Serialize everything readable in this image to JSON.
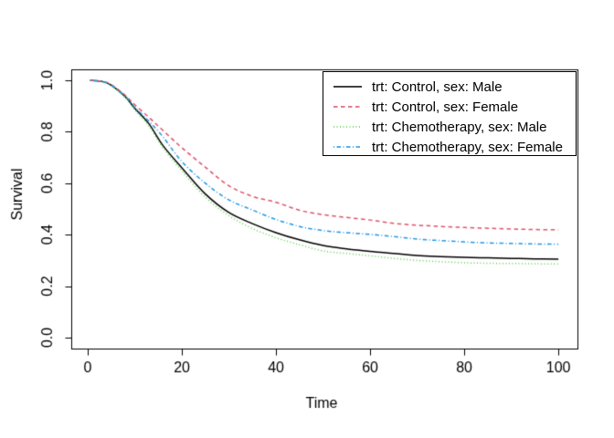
{
  "figure": {
    "background": "#ffffff",
    "frame_color": "#000000",
    "text_color": "#000000"
  },
  "chart_data": {
    "type": "line",
    "title": "",
    "xlabel": "Time",
    "ylabel": "Survival",
    "xlim": [
      -3.5,
      104.05
    ],
    "ylim": [
      -0.0426,
      1.0426
    ],
    "grid": "off",
    "xticks": {
      "labels": [
        "0",
        "20",
        "40",
        "60",
        "80",
        "100"
      ],
      "values": [
        0,
        20,
        40,
        60,
        80,
        100
      ]
    },
    "yticks": {
      "labels": [
        "0.0",
        "0.2",
        "0.4",
        "0.6",
        "0.8",
        "1.0"
      ],
      "values": [
        0,
        0.2,
        0.4,
        0.6,
        0.8,
        1.0
      ]
    },
    "legend": {
      "position": "topright",
      "border": true
    },
    "x": [
      0.5,
      3,
      5,
      8,
      10,
      13,
      16,
      20,
      25,
      30,
      35,
      40,
      45,
      50,
      55,
      60,
      65,
      70,
      75,
      80,
      85,
      90,
      95,
      100
    ],
    "series": [
      {
        "name": "trt: Control, sex: Male",
        "color": "#000000",
        "linetype": "solid",
        "dash": [],
        "values": [
          1.0,
          0.996,
          0.981,
          0.936,
          0.891,
          0.831,
          0.746,
          0.66,
          0.558,
          0.486,
          0.443,
          0.408,
          0.38,
          0.358,
          0.345,
          0.335,
          0.327,
          0.319,
          0.315,
          0.312,
          0.31,
          0.308,
          0.306,
          0.305
        ]
      },
      {
        "name": "trt: Control, sex: Female",
        "color": "#DF536B",
        "linetype": "dashed",
        "dash": [
          4.5,
          3.5
        ],
        "values": [
          1.0,
          0.996,
          0.983,
          0.941,
          0.905,
          0.856,
          0.805,
          0.738,
          0.662,
          0.59,
          0.549,
          0.526,
          0.495,
          0.478,
          0.467,
          0.457,
          0.444,
          0.437,
          0.432,
          0.428,
          0.425,
          0.422,
          0.42,
          0.419
        ]
      },
      {
        "name": "trt: Chemotherapy, sex: Male",
        "color": "#61D04F",
        "linetype": "dotted",
        "dash": [
          1,
          2.5
        ],
        "values": [
          1.0,
          0.995,
          0.979,
          0.931,
          0.885,
          0.822,
          0.737,
          0.648,
          0.545,
          0.474,
          0.424,
          0.388,
          0.361,
          0.337,
          0.327,
          0.318,
          0.308,
          0.3,
          0.295,
          0.291,
          0.289,
          0.288,
          0.287,
          0.286
        ]
      },
      {
        "name": "trt: Chemotherapy, sex: Female",
        "color": "#2297E6",
        "linetype": "dashdot",
        "dash": [
          1,
          2.5,
          4.5,
          2.5
        ],
        "values": [
          1.0,
          0.996,
          0.981,
          0.938,
          0.895,
          0.841,
          0.78,
          0.684,
          0.6,
          0.535,
          0.496,
          0.459,
          0.432,
          0.416,
          0.408,
          0.401,
          0.393,
          0.383,
          0.377,
          0.372,
          0.368,
          0.366,
          0.364,
          0.363
        ]
      }
    ]
  }
}
